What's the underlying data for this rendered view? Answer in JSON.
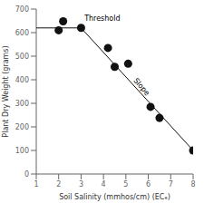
{
  "chart_data": {
    "type": "scatter",
    "xlabel": "Soil Salinity (mmhos/cm) (ECₑ)",
    "ylabel": "Plant Dry Weight (grams)",
    "xlim": [
      1,
      8
    ],
    "ylim": [
      0,
      700
    ],
    "xticks": [
      1,
      2,
      3,
      4,
      5,
      6,
      7,
      8
    ],
    "yticks": [
      0,
      100,
      200,
      300,
      400,
      500,
      600,
      700
    ],
    "grid": false,
    "series": [
      {
        "type": "line",
        "color": "#111111",
        "x": [
          1.0,
          3.0
        ],
        "values": [
          620,
          620
        ]
      },
      {
        "type": "line",
        "color": "#111111",
        "x": [
          3.0,
          8.0
        ],
        "values": [
          620,
          100
        ]
      },
      {
        "type": "scatter",
        "color": "#111111",
        "x": [
          2.0,
          2.2,
          3.0,
          4.2,
          4.5,
          5.1,
          6.1,
          6.5,
          8.0
        ],
        "values": [
          610,
          648,
          620,
          535,
          455,
          468,
          285,
          238,
          100
        ]
      }
    ],
    "annotations": [
      {
        "text": "Threshold",
        "x": 3.15,
        "y": 650
      },
      {
        "text": "Slope",
        "x": 5.7,
        "y": 370
      }
    ]
  }
}
